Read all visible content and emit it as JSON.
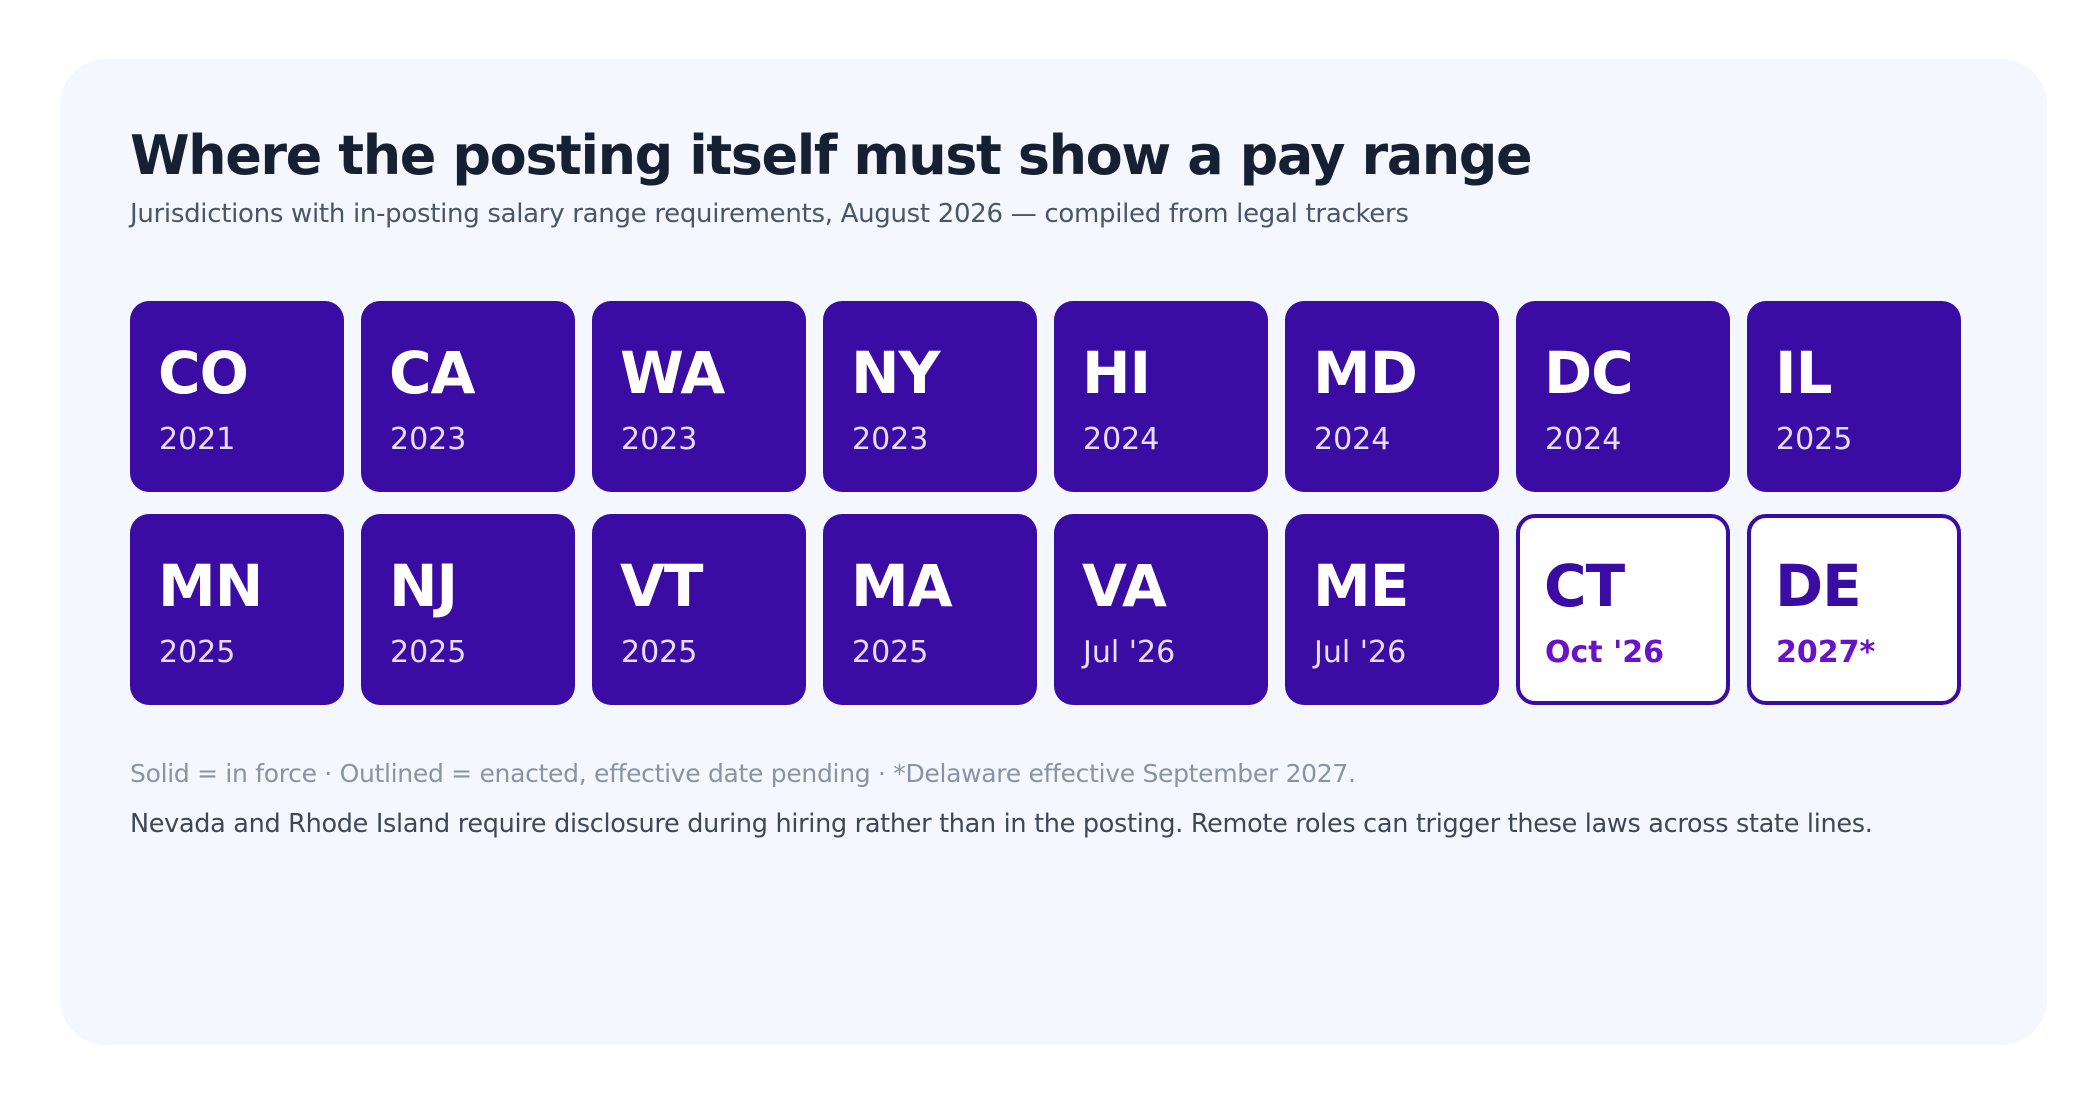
{
  "title": "Where the posting itself must show a pay range",
  "subtitle": "Jurisdictions with in-posting salary range requirements, August 2026 — compiled from legal trackers",
  "colors": {
    "card_background": "#f4f7fe",
    "in_force_fill": "#3b0ca3",
    "pending_date_text": "#6a12c9",
    "title_text": "#172033"
  },
  "jurisdictions": [
    {
      "abbr": "CO",
      "date": "2021",
      "status": "in-force"
    },
    {
      "abbr": "CA",
      "date": "2023",
      "status": "in-force"
    },
    {
      "abbr": "WA",
      "date": "2023",
      "status": "in-force"
    },
    {
      "abbr": "NY",
      "date": "2023",
      "status": "in-force"
    },
    {
      "abbr": "HI",
      "date": "2024",
      "status": "in-force"
    },
    {
      "abbr": "MD",
      "date": "2024",
      "status": "in-force"
    },
    {
      "abbr": "DC",
      "date": "2024",
      "status": "in-force"
    },
    {
      "abbr": "IL",
      "date": "2025",
      "status": "in-force"
    },
    {
      "abbr": "MN",
      "date": "2025",
      "status": "in-force"
    },
    {
      "abbr": "NJ",
      "date": "2025",
      "status": "in-force"
    },
    {
      "abbr": "VT",
      "date": "2025",
      "status": "in-force"
    },
    {
      "abbr": "MA",
      "date": "2025",
      "status": "in-force"
    },
    {
      "abbr": "VA",
      "date": "Jul '26",
      "status": "in-force"
    },
    {
      "abbr": "ME",
      "date": "Jul '26",
      "status": "in-force"
    },
    {
      "abbr": "CT",
      "date": "Oct '26",
      "status": "pending"
    },
    {
      "abbr": "DE",
      "date": "2027*",
      "status": "pending"
    }
  ],
  "legend_note": "Solid = in force · Outlined = enacted, effective date pending · *Delaware effective September 2027.",
  "footnote": "Nevada and Rhode Island require disclosure during hiring rather than in the posting. Remote roles can trigger these laws across state lines."
}
